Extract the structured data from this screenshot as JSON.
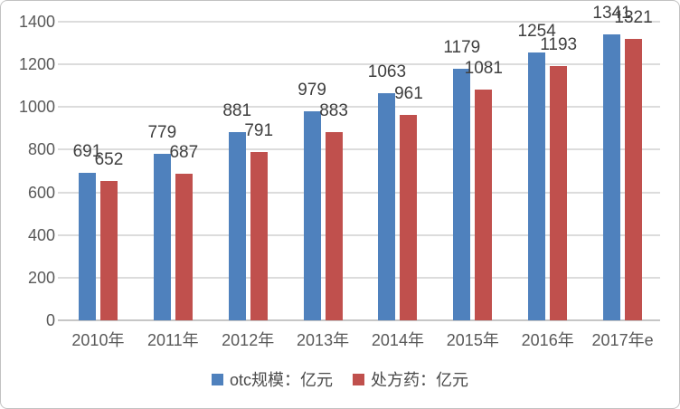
{
  "chart_data": {
    "type": "bar",
    "title": "",
    "categories": [
      "2010年",
      "2011年",
      "2012年",
      "2013年",
      "2014年",
      "2015年",
      "2016年",
      "2017年e"
    ],
    "series": [
      {
        "name": "otc规模：亿元",
        "color": "#4F81BD",
        "values": [
          691,
          779,
          881,
          979,
          1063,
          1179,
          1254,
          1341
        ]
      },
      {
        "name": "处方药：亿元",
        "color": "#C0504D",
        "values": [
          652,
          687,
          791,
          883,
          961,
          1081,
          1193,
          1321
        ]
      }
    ],
    "xlabel": "",
    "ylabel": "",
    "ylim": [
      0,
      1400
    ],
    "yticks": [
      0,
      200,
      400,
      600,
      800,
      1000,
      1200,
      1400
    ],
    "grid": true,
    "data_labels": true,
    "legend_position": "bottom"
  },
  "colors": {
    "background": "#ffffff",
    "window_border": "#c2c2c2",
    "gridline": "#dcdcdc",
    "axis_line": "#c6c6c6",
    "axis_text": "#595959",
    "data_label_text": "#3f3f3f",
    "series_otc": "#4F81BD",
    "series_rx": "#C0504D"
  }
}
